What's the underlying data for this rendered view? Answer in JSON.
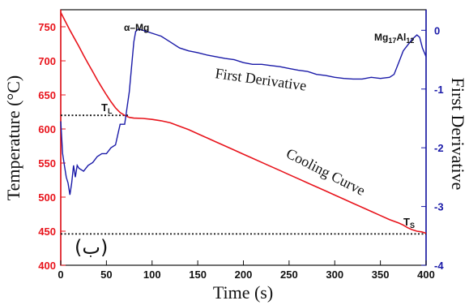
{
  "chart_data": {
    "type": "line",
    "xlabel": "Time (s)",
    "ylabel_left": "Temperature (°C)",
    "ylabel_right": "First Derivative",
    "xlim": [
      0,
      400
    ],
    "ylim_left": [
      400,
      775
    ],
    "ylim_right": [
      -4,
      0.35
    ],
    "x_ticks": [
      "0",
      "50",
      "100",
      "150",
      "200",
      "250",
      "300",
      "350",
      "400"
    ],
    "left_ticks": [
      "400",
      "450",
      "500",
      "550",
      "600",
      "650",
      "700",
      "750"
    ],
    "right_ticks": [
      "-4",
      "-3",
      "-2",
      "-1",
      "0"
    ],
    "colors": {
      "cooling": "#e8141c",
      "derivative": "#1a1aa8",
      "left_axis": "#e8141c",
      "right_axis": "#1a1aa8",
      "dotted": "#111111"
    },
    "panel_label": "(ب)",
    "labels": {
      "first_derivative": "First Derivative",
      "cooling_curve": "Cooling Curve",
      "alpha_mg": "α–Mg",
      "mg17al12": "Mg17Al12",
      "tl": "TL",
      "ts": "TS"
    },
    "series": [
      {
        "name": "Cooling Curve",
        "axis": "left",
        "points": [
          [
            0,
            771
          ],
          [
            5,
            758
          ],
          [
            10,
            745
          ],
          [
            15,
            733
          ],
          [
            20,
            721
          ],
          [
            25,
            708
          ],
          [
            30,
            696
          ],
          [
            35,
            684
          ],
          [
            40,
            672
          ],
          [
            45,
            661
          ],
          [
            50,
            650
          ],
          [
            55,
            640
          ],
          [
            60,
            631
          ],
          [
            65,
            624
          ],
          [
            70,
            620
          ],
          [
            75,
            617
          ],
          [
            80,
            616
          ],
          [
            90,
            615.5
          ],
          [
            100,
            614
          ],
          [
            110,
            612
          ],
          [
            120,
            609
          ],
          [
            130,
            604
          ],
          [
            140,
            599
          ],
          [
            150,
            593
          ],
          [
            160,
            587
          ],
          [
            170,
            581
          ],
          [
            180,
            575
          ],
          [
            190,
            569
          ],
          [
            200,
            563
          ],
          [
            210,
            557
          ],
          [
            220,
            551
          ],
          [
            230,
            545
          ],
          [
            240,
            539
          ],
          [
            250,
            533
          ],
          [
            260,
            527
          ],
          [
            270,
            521
          ],
          [
            280,
            515
          ],
          [
            290,
            509
          ],
          [
            300,
            503
          ],
          [
            310,
            497
          ],
          [
            320,
            491
          ],
          [
            330,
            485
          ],
          [
            340,
            479
          ],
          [
            350,
            473
          ],
          [
            360,
            467
          ],
          [
            370,
            462
          ],
          [
            375,
            459
          ],
          [
            380,
            455
          ],
          [
            385,
            452
          ],
          [
            390,
            450
          ],
          [
            395,
            449
          ],
          [
            400,
            447
          ]
        ]
      },
      {
        "name": "First Derivative",
        "axis": "right",
        "points": [
          [
            0,
            -1.55
          ],
          [
            2,
            -2.1
          ],
          [
            4,
            -2.3
          ],
          [
            6,
            -2.5
          ],
          [
            8,
            -2.6
          ],
          [
            10,
            -2.8
          ],
          [
            12,
            -2.6
          ],
          [
            14,
            -2.3
          ],
          [
            16,
            -2.5
          ],
          [
            18,
            -2.3
          ],
          [
            20,
            -2.35
          ],
          [
            25,
            -2.4
          ],
          [
            30,
            -2.3
          ],
          [
            35,
            -2.25
          ],
          [
            40,
            -2.15
          ],
          [
            45,
            -2.1
          ],
          [
            50,
            -2.1
          ],
          [
            55,
            -2.0
          ],
          [
            60,
            -1.95
          ],
          [
            65,
            -1.6
          ],
          [
            70,
            -1.6
          ],
          [
            75,
            -1.05
          ],
          [
            78,
            -0.55
          ],
          [
            80,
            -0.2
          ],
          [
            82,
            -0.02
          ],
          [
            85,
            0.02
          ],
          [
            90,
            0.0
          ],
          [
            100,
            -0.05
          ],
          [
            110,
            -0.1
          ],
          [
            120,
            -0.2
          ],
          [
            130,
            -0.3
          ],
          [
            140,
            -0.35
          ],
          [
            150,
            -0.38
          ],
          [
            160,
            -0.42
          ],
          [
            170,
            -0.45
          ],
          [
            180,
            -0.48
          ],
          [
            190,
            -0.5
          ],
          [
            200,
            -0.55
          ],
          [
            210,
            -0.58
          ],
          [
            220,
            -0.58
          ],
          [
            230,
            -0.6
          ],
          [
            240,
            -0.62
          ],
          [
            250,
            -0.65
          ],
          [
            260,
            -0.68
          ],
          [
            270,
            -0.7
          ],
          [
            280,
            -0.75
          ],
          [
            290,
            -0.77
          ],
          [
            300,
            -0.8
          ],
          [
            310,
            -0.82
          ],
          [
            320,
            -0.83
          ],
          [
            330,
            -0.83
          ],
          [
            340,
            -0.8
          ],
          [
            350,
            -0.82
          ],
          [
            360,
            -0.8
          ],
          [
            365,
            -0.75
          ],
          [
            370,
            -0.55
          ],
          [
            375,
            -0.35
          ],
          [
            380,
            -0.25
          ],
          [
            385,
            -0.15
          ],
          [
            390,
            -0.08
          ],
          [
            393,
            -0.12
          ],
          [
            396,
            -0.3
          ],
          [
            400,
            -0.45
          ]
        ]
      }
    ],
    "reference_lines": [
      {
        "name": "TL",
        "axis": "left",
        "y": 620,
        "x_range": [
          0,
          75
        ]
      },
      {
        "name": "TS",
        "axis": "left",
        "y": 446,
        "x_range": [
          0,
          400
        ]
      }
    ]
  }
}
